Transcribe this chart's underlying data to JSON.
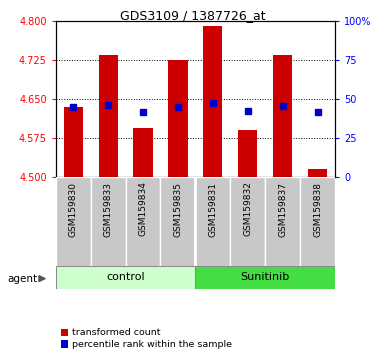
{
  "title": "GDS3109 / 1387726_at",
  "samples": [
    "GSM159830",
    "GSM159833",
    "GSM159834",
    "GSM159835",
    "GSM159831",
    "GSM159832",
    "GSM159837",
    "GSM159838"
  ],
  "red_values": [
    4.635,
    4.735,
    4.595,
    4.725,
    4.79,
    4.59,
    4.735,
    4.515
  ],
  "blue_values": [
    4.635,
    4.638,
    4.625,
    4.635,
    4.642,
    4.628,
    4.636,
    4.625
  ],
  "y_min": 4.5,
  "y_max": 4.8,
  "y_ticks_left": [
    4.5,
    4.575,
    4.65,
    4.725,
    4.8
  ],
  "y_ticks_right": [
    0,
    25,
    50,
    75,
    100
  ],
  "bar_color": "#cc0000",
  "blue_color": "#0000cc",
  "control_color": "#ccffcc",
  "sunitinib_color": "#44dd44",
  "label_bg_color": "#c8c8c8",
  "legend_red_label": "transformed count",
  "legend_blue_label": "percentile rank within the sample",
  "agent_label": "agent",
  "bar_width": 0.55,
  "bar_base": 4.5,
  "n_control": 4,
  "n_sunitinib": 4
}
